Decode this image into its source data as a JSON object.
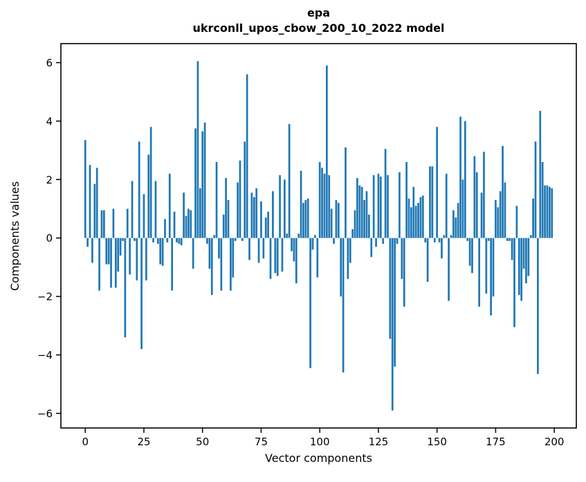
{
  "chart_data": {
    "type": "bar",
    "title": "epa",
    "subtitle": "ukrconll_upos_cbow_200_10_2022 model",
    "xlabel": "Vector components",
    "ylabel": "Components values",
    "x_tick_values": [
      0,
      25,
      50,
      75,
      100,
      125,
      150,
      175,
      200
    ],
    "x_tick_labels": [
      "0",
      "25",
      "50",
      "75",
      "100",
      "125",
      "150",
      "175",
      "200"
    ],
    "y_tick_values": [
      -6,
      -4,
      -2,
      0,
      2,
      4,
      6
    ],
    "y_tick_labels": [
      "−6",
      "−4",
      "−2",
      "0",
      "2",
      "4",
      "6"
    ],
    "xlim": [
      -10.4,
      209.4
    ],
    "ylim": [
      -6.5,
      6.65
    ],
    "grid": false,
    "legend": null,
    "bar_color": "#1f77b4",
    "axis_color": "#000000",
    "bar_width": 0.8,
    "x_start": 0,
    "values": [
      3.35,
      -0.3,
      2.5,
      -0.85,
      1.85,
      2.4,
      -1.8,
      0.95,
      0.95,
      -0.9,
      -0.9,
      -1.7,
      1.0,
      -1.7,
      -1.15,
      -0.6,
      -0.1,
      -3.4,
      1.0,
      -1.25,
      1.95,
      -0.1,
      -1.45,
      3.3,
      -3.8,
      1.5,
      -1.45,
      2.85,
      3.8,
      -0.15,
      1.95,
      -0.2,
      -0.9,
      -0.95,
      0.65,
      -0.15,
      2.2,
      -1.8,
      0.9,
      -0.15,
      -0.2,
      -0.25,
      1.55,
      0.75,
      1.0,
      0.95,
      -1.05,
      3.75,
      6.05,
      1.7,
      3.65,
      3.95,
      -0.2,
      -1.05,
      -1.95,
      0.1,
      2.6,
      -0.7,
      -1.8,
      0.8,
      2.05,
      1.3,
      -1.8,
      -1.35,
      -0.1,
      1.9,
      2.65,
      -0.1,
      3.3,
      5.6,
      -0.75,
      1.55,
      1.4,
      1.7,
      -0.85,
      1.25,
      -0.7,
      0.7,
      0.9,
      -1.4,
      1.6,
      -1.2,
      -1.3,
      2.15,
      -1.15,
      2.0,
      0.15,
      3.9,
      -0.45,
      -0.8,
      -1.55,
      0.15,
      2.3,
      1.2,
      1.3,
      1.35,
      -4.45,
      -0.4,
      0.1,
      -1.35,
      2.6,
      2.4,
      2.2,
      5.9,
      2.15,
      1.0,
      -0.2,
      1.3,
      1.2,
      -2.0,
      -4.6,
      3.1,
      -1.4,
      -0.85,
      0.3,
      0.95,
      2.05,
      1.8,
      1.75,
      1.3,
      1.6,
      0.8,
      -0.65,
      2.15,
      -0.3,
      2.2,
      2.1,
      -0.2,
      3.05,
      2.15,
      -3.45,
      -5.9,
      -4.4,
      -0.2,
      2.25,
      -1.4,
      -2.35,
      2.6,
      1.35,
      1.05,
      1.75,
      1.1,
      1.2,
      1.4,
      1.45,
      -0.15,
      -1.5,
      2.45,
      2.45,
      -0.15,
      3.8,
      -0.15,
      -0.7,
      0.1,
      2.2,
      -2.15,
      0.1,
      0.95,
      0.7,
      1.2,
      4.15,
      2.0,
      4.0,
      -0.1,
      -0.95,
      -1.2,
      2.8,
      2.25,
      -2.35,
      1.55,
      2.95,
      -1.9,
      -0.1,
      -2.65,
      -2.0,
      1.3,
      1.05,
      1.6,
      3.15,
      1.9,
      -0.1,
      -0.1,
      -0.75,
      -3.05,
      1.1,
      -1.95,
      -2.15,
      -1.05,
      -1.55,
      -1.3,
      0.1,
      1.35,
      3.3,
      -4.65,
      4.35,
      2.6,
      1.8,
      1.8,
      1.75,
      1.7
    ]
  }
}
